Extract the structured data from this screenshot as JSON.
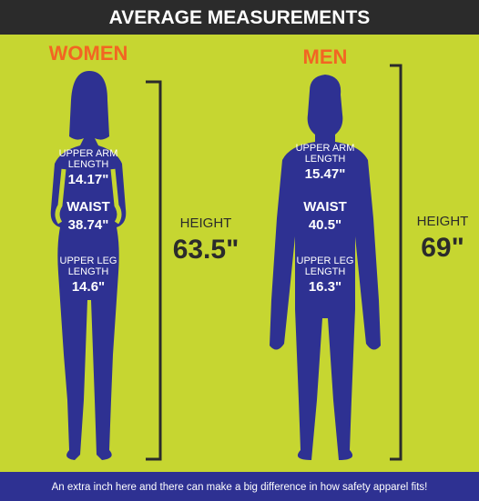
{
  "header": {
    "title": "AVERAGE MEASUREMENTS"
  },
  "figures": [
    {
      "label": "WOMEN",
      "upper_arm": {
        "label_lines": [
          "UPPER ARM",
          "LENGTH"
        ],
        "value": "14.17\""
      },
      "waist": {
        "label": "WAIST",
        "value": "38.74\""
      },
      "upper_leg": {
        "label_lines": [
          "UPPER LEG",
          "LENGTH"
        ],
        "value": "14.6\""
      },
      "height": {
        "label": "HEIGHT",
        "value": "63.5\""
      }
    },
    {
      "label": "MEN",
      "upper_arm": {
        "label_lines": [
          "UPPER ARM",
          "LENGTH"
        ],
        "value": "15.47\""
      },
      "waist": {
        "label": "WAIST",
        "value": "40.5\""
      },
      "upper_leg": {
        "label_lines": [
          "UPPER LEG",
          "LENGTH"
        ],
        "value": "16.3\""
      },
      "height": {
        "label": "HEIGHT",
        "value": "69\""
      }
    }
  ],
  "footer": {
    "text": "An extra inch here and there can make a big difference in how safety apparel fits!"
  }
}
